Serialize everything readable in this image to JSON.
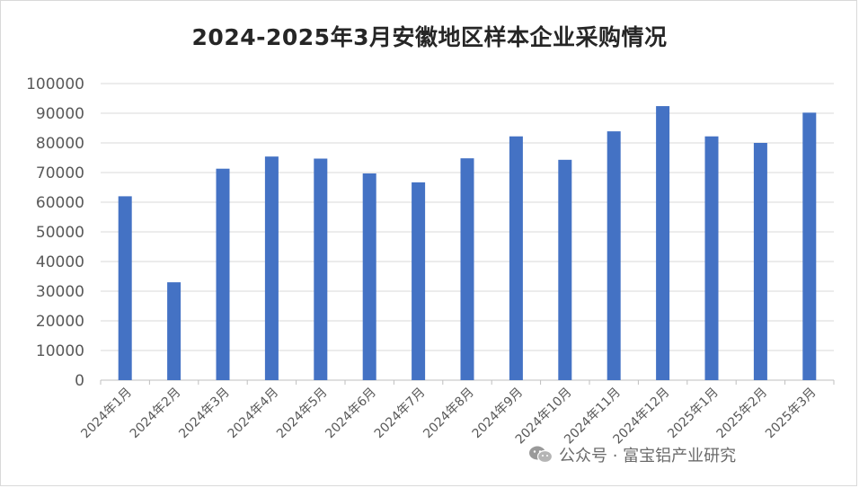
{
  "chart_data": {
    "type": "bar",
    "title": "2024-2025年3月安徽地区样本企业采购情况",
    "xlabel": "",
    "ylabel": "",
    "ylim": [
      0,
      100000
    ],
    "yticks": [
      0,
      10000,
      20000,
      30000,
      40000,
      50000,
      60000,
      70000,
      80000,
      90000,
      100000
    ],
    "grid": true,
    "legend": "none",
    "bar_color": "#4472c4",
    "categories": [
      "2024年1月",
      "2024年2月",
      "2024年3月",
      "2024年4月",
      "2024年5月",
      "2024年6月",
      "2024年7月",
      "2024年8月",
      "2024年9月",
      "2024年10月",
      "2024年11月",
      "2024年12月",
      "2025年1月",
      "2025年2月",
      "2025年3月"
    ],
    "values": [
      62000,
      33000,
      71300,
      75400,
      74700,
      69700,
      66700,
      74800,
      82200,
      74300,
      83900,
      92400,
      82200,
      80000,
      90200
    ]
  },
  "watermark": {
    "text": "公众号 · 富宝铝产业研究",
    "icon": "wechat-icon"
  }
}
